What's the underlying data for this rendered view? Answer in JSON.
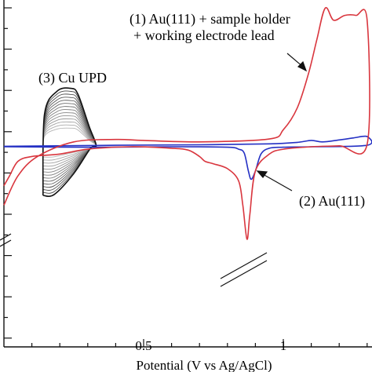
{
  "chart_data": {
    "type": "line",
    "title": "",
    "xlabel": "Potential (V vs Ag/AgCl)",
    "ylabel": "",
    "xlim": [
      0.0,
      1.3
    ],
    "x_ticks": [
      0.5,
      1
    ],
    "x_tick_labels": [
      "0.5",
      "1"
    ],
    "grid": false,
    "annotations": {
      "red_line1": "(1) Au(111) + sample holder",
      "red_line2": "+ working electrode lead",
      "blue": "(2) Au(111)",
      "cu": "(3) Cu UPD"
    },
    "colors": {
      "red": "#d9363e",
      "blue": "#2430c4",
      "black": "#111111",
      "gray": "#9a9a9a"
    },
    "series": [
      {
        "name": "(1) Au(111) + sample holder + working electrode lead",
        "color": "red",
        "upper": [
          [
            0.0,
            -12
          ],
          [
            0.05,
            -6
          ],
          [
            0.12,
            -2
          ],
          [
            0.25,
            1
          ],
          [
            0.4,
            1.5
          ],
          [
            0.5,
            1.3
          ],
          [
            0.7,
            1.0
          ],
          [
            0.95,
            1.6
          ],
          [
            1.0,
            3.5
          ],
          [
            1.05,
            8
          ],
          [
            1.09,
            15
          ],
          [
            1.12,
            22
          ],
          [
            1.15,
            28.5
          ],
          [
            1.18,
            26
          ],
          [
            1.22,
            27
          ],
          [
            1.26,
            27
          ],
          [
            1.3,
            26
          ]
        ],
        "lower": [
          [
            1.3,
            0.5
          ],
          [
            1.2,
            0.2
          ],
          [
            1.1,
            0.0
          ],
          [
            1.0,
            -0.5
          ],
          [
            0.95,
            -1.5
          ],
          [
            0.9,
            -5
          ],
          [
            0.88,
            -14
          ],
          [
            0.87,
            -19
          ],
          [
            0.855,
            -12
          ],
          [
            0.84,
            -7
          ],
          [
            0.8,
            -4.5
          ],
          [
            0.75,
            -3.5
          ],
          [
            0.72,
            -3
          ],
          [
            0.7,
            -2
          ],
          [
            0.66,
            -0.7
          ],
          [
            0.6,
            -0.3
          ],
          [
            0.45,
            0.0
          ],
          [
            0.3,
            -0.5
          ],
          [
            0.2,
            -1.5
          ],
          [
            0.1,
            -2
          ],
          [
            0.05,
            -3
          ],
          [
            0.02,
            -6
          ],
          [
            0.0,
            -8
          ]
        ]
      },
      {
        "name": "(2) Au(111)",
        "color": "blue",
        "upper": [
          [
            0.0,
            0.1
          ],
          [
            0.4,
            0.3
          ],
          [
            0.7,
            0.4
          ],
          [
            0.95,
            0.6
          ],
          [
            1.05,
            0.9
          ],
          [
            1.1,
            1.3
          ],
          [
            1.14,
            1.0
          ],
          [
            1.2,
            1.4
          ],
          [
            1.25,
            1.8
          ],
          [
            1.3,
            2.1
          ]
        ],
        "lower": [
          [
            1.3,
            0.3
          ],
          [
            1.1,
            0.0
          ],
          [
            1.0,
            -0.1
          ],
          [
            0.95,
            -0.3
          ],
          [
            0.92,
            -1.5
          ],
          [
            0.9,
            -5
          ],
          [
            0.885,
            -6.7
          ],
          [
            0.875,
            -5
          ],
          [
            0.86,
            -1.3
          ],
          [
            0.84,
            -0.5
          ],
          [
            0.8,
            -0.1
          ],
          [
            0.6,
            0.0
          ],
          [
            0.3,
            -0.1
          ],
          [
            0.0,
            0.0
          ]
        ]
      }
    ],
    "cu_upd_cycles": 14,
    "cu_upd_x_range": [
      0.14,
      0.33
    ]
  }
}
